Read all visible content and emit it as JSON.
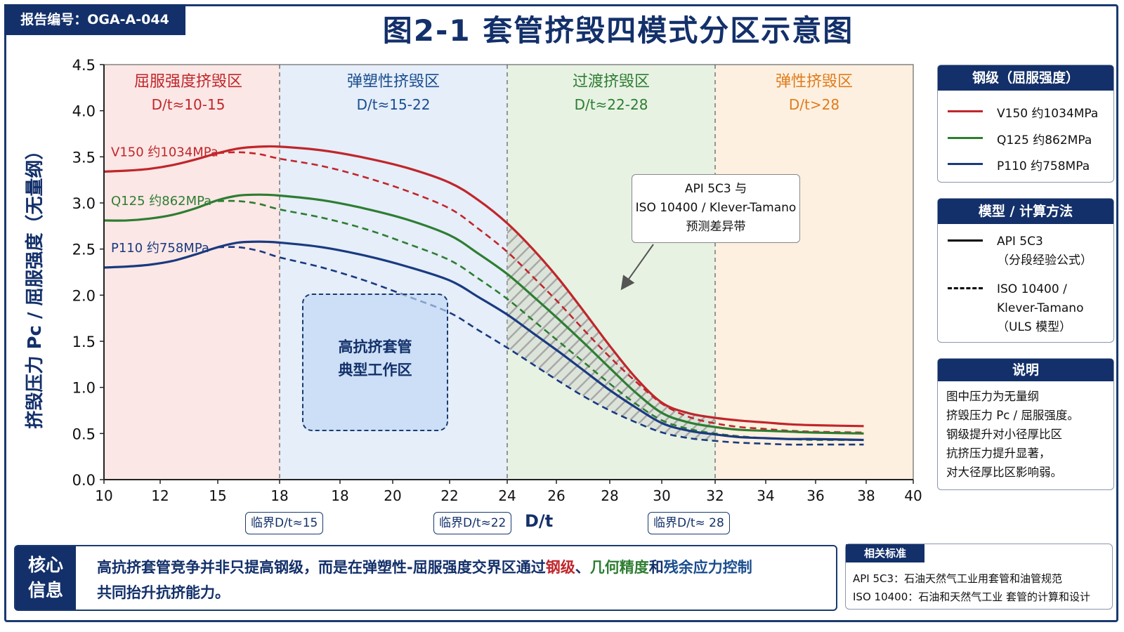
{
  "report_id": "报告编号：OGA-A-044",
  "title": "图2-1  套管挤毁四模式分区示意图",
  "chart_data": {
    "type": "line",
    "ylabel": "挤毁压力 Pc / 屈服强度（无量纲）",
    "xlabel": "D/t",
    "ylim": [
      0,
      4.5
    ],
    "yticks": [
      "0.0",
      "0.5",
      "1.0",
      "1.5",
      "2.0",
      "2.5",
      "3.0",
      "3.5",
      "4.0",
      "4.5"
    ],
    "xticks": [
      "10",
      "12",
      "15",
      "18",
      "18",
      "20",
      "22",
      "24",
      "26",
      "28",
      "30",
      "32",
      "34",
      "36",
      "38",
      "40"
    ],
    "zones": [
      {
        "name": "屈服强度挤毁区",
        "range": "D/t≈10-15",
        "color": "#c0262b",
        "fill": "#fbe7e5"
      },
      {
        "name": "弹塑性挤毁区",
        "range": "D/t≈15-22",
        "color": "#1a4d8f",
        "fill": "#e5eef9"
      },
      {
        "name": "过渡挤毁区",
        "range": "D/t≈22-28",
        "color": "#2e7d32",
        "fill": "#e7f2e3"
      },
      {
        "name": "弹性挤毁区",
        "range": "D/t>28",
        "color": "#e07b1c",
        "fill": "#fdf0e0"
      }
    ],
    "series": [
      {
        "name": "V150  约1034MPa",
        "color": "#c0262b",
        "solid": [
          3.34,
          3.35,
          3.37,
          3.41,
          3.47,
          3.54,
          3.59,
          3.61,
          3.61,
          3.57,
          3.49,
          3.38,
          3.22,
          3.03,
          2.78,
          2.5,
          2.18,
          1.82,
          1.45,
          1.1,
          0.83,
          0.72,
          0.67,
          0.64,
          0.62,
          0.6,
          0.59,
          0.58
        ],
        "dashed": [
          null,
          null,
          null,
          null,
          null,
          3.54,
          3.55,
          3.53,
          3.48,
          3.4,
          3.28,
          3.13,
          2.94,
          2.72,
          2.47,
          2.2,
          1.92,
          1.62,
          1.33,
          1.06,
          0.82,
          0.68,
          0.61,
          0.57,
          0.55,
          0.53,
          0.52,
          0.51
        ]
      },
      {
        "name": "Q125  约862MPa",
        "color": "#2e7d32",
        "solid": [
          2.81,
          2.81,
          2.83,
          2.87,
          2.94,
          3.03,
          3.08,
          3.09,
          3.08,
          3.03,
          2.94,
          2.82,
          2.65,
          2.45,
          2.23,
          1.99,
          1.74,
          1.48,
          1.21,
          0.94,
          0.72,
          0.62,
          0.57,
          0.54,
          0.53,
          0.52,
          0.51,
          0.5
        ],
        "dashed": [
          null,
          null,
          null,
          null,
          null,
          3.02,
          3.02,
          2.99,
          2.93,
          2.84,
          2.72,
          2.56,
          2.38,
          2.18,
          1.96,
          1.73,
          1.5,
          1.27,
          1.04,
          0.82,
          0.64,
          0.55,
          0.5,
          0.47,
          0.45,
          0.44,
          0.43,
          0.43
        ]
      },
      {
        "name": "P110  约758MPa",
        "color": "#1a3a80",
        "solid": [
          2.3,
          2.31,
          2.33,
          2.37,
          2.44,
          2.52,
          2.57,
          2.58,
          2.57,
          2.52,
          2.43,
          2.31,
          2.16,
          1.98,
          1.79,
          1.59,
          1.39,
          1.18,
          0.97,
          0.78,
          0.61,
          0.53,
          0.49,
          0.46,
          0.45,
          0.44,
          0.44,
          0.43
        ],
        "dashed": [
          null,
          null,
          null,
          null,
          null,
          2.52,
          2.52,
          2.48,
          2.41,
          2.3,
          2.16,
          1.99,
          1.81,
          1.62,
          1.43,
          1.25,
          1.07,
          0.9,
          0.75,
          0.62,
          0.51,
          0.45,
          0.42,
          0.4,
          0.39,
          0.38,
          0.38,
          0.38
        ]
      }
    ],
    "series_x": [
      10,
      11,
      12,
      13,
      14,
      15,
      16,
      17,
      18,
      19,
      20,
      21,
      22,
      23,
      24,
      25,
      26,
      27,
      28,
      29,
      30,
      31,
      32,
      33,
      34,
      35,
      36,
      38
    ],
    "critical_markers": [
      "临界D/t≈15",
      "临界D/t≈22",
      "临界D/t≈ 28"
    ]
  },
  "callout": [
    "API 5C3 与",
    "ISO 10400 / Klever-Tamano",
    "预测差异带"
  ],
  "hi_work_zone": [
    "高抗挤套管",
    "典型工作区"
  ],
  "legend_grade": {
    "title": "钢级（屈服强度）",
    "items": [
      {
        "label": "V150   约1034MPa",
        "color": "#c0262b"
      },
      {
        "label": "Q125   约862MPa",
        "color": "#2e7d32"
      },
      {
        "label": "P110   约758MPa",
        "color": "#1a3a80"
      }
    ]
  },
  "legend_model": {
    "title": "模型 / 计算方法",
    "solid_line1": "API 5C3",
    "solid_line2": "（分段经验公式）",
    "dash_line1": "ISO 10400 /",
    "dash_line2": "Klever-Tamano",
    "dash_line3": "（ULS 模型）"
  },
  "notes": {
    "title": "说明",
    "lines": [
      "图中压力为无量纲",
      "挤毁压力 Pc / 屈服强度。",
      "钢级提升对小径厚比区",
      "抗挤压力提升显著，",
      "对大径厚比区影响弱。"
    ]
  },
  "core_message": {
    "tag_line1": "核心",
    "tag_line2": "信息",
    "text_part1": "高抗挤套管竞争并非只提高钢级，而是在弹塑性-屈服强度交界区通过",
    "kw1": "钢级",
    "sep1": "、",
    "kw2": "几何精度",
    "sep2": "和",
    "kw3": "残余应力控制",
    "line2": "共同抬升抗挤能力。"
  },
  "standards": {
    "title": "相关标准",
    "line1": "API 5C3：石油天然气工业用套管和油管规范",
    "line2": "ISO 10400：石油和天然气工业 套管的计算和设计"
  }
}
